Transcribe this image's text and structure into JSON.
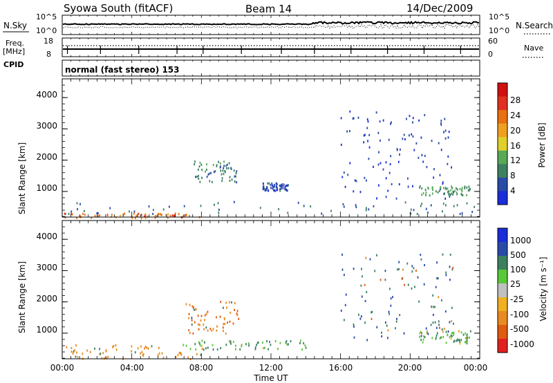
{
  "header": {
    "station": "Syowa South (fitACF)",
    "beam": "Beam 14",
    "date": "14/Dec/2009"
  },
  "top_panels": {
    "nsky_label": "N.Sky",
    "nsky_ticks": [
      "10^5",
      "10^0"
    ],
    "nsearch_label": "N.Search",
    "nsearch_ticks": [
      "10^5",
      "10^0"
    ],
    "freq_label": "Freq.",
    "freq_unit": "[MHz]",
    "freq_ticks": [
      "18",
      "8"
    ],
    "nave_label": "Nave",
    "nave_ticks": [
      "60",
      "0"
    ],
    "cpid_label": "CPID",
    "cpid_text": "normal (fast stereo) 153"
  },
  "colors": {
    "power_scale": [
      "#1a2dd8",
      "#2a4aa8",
      "#3d8060",
      "#58a858",
      "#e0cf2a",
      "#f0a020",
      "#e87010",
      "#e03020",
      "#d01010"
    ],
    "velocity_scale": [
      "#1a2dd8",
      "#2a4aa8",
      "#3d8060",
      "#58c838",
      "#c0c0c0",
      "#f0b020",
      "#e88a20",
      "#e05a10",
      "#e02020"
    ]
  },
  "chart_data": [
    {
      "type": "heatmap",
      "name": "power",
      "ylabel": "Slant Range [km]",
      "xlabel": "",
      "yticks": [
        "1000",
        "2000",
        "3000",
        "4000"
      ],
      "ylim": [
        180,
        4600
      ],
      "xlim": [
        0,
        24
      ],
      "colorbar": {
        "label": "Power [dB]",
        "ticks": [
          "4",
          "8",
          "12",
          "16",
          "20",
          "24",
          "28"
        ],
        "range": [
          0,
          32
        ]
      },
      "scatter_regions": [
        {
          "x": [
            16.0,
            22.5
          ],
          "y": [
            800,
            3600
          ],
          "value": 4
        },
        {
          "x": [
            20.5,
            23.5
          ],
          "y": [
            900,
            1200
          ],
          "value": 12
        },
        {
          "x": [
            7.5,
            10.0
          ],
          "y": [
            1300,
            2000
          ],
          "value": 10
        },
        {
          "x": [
            11.5,
            13.0
          ],
          "y": [
            1050,
            1300
          ],
          "value": 6
        },
        {
          "x": [
            0.0,
            24.0
          ],
          "y": [
            300,
            700
          ],
          "value": 8
        },
        {
          "x": [
            0.0,
            8.0
          ],
          "y": [
            180,
            330
          ],
          "value": 26
        }
      ]
    },
    {
      "type": "heatmap",
      "name": "velocity",
      "ylabel": "Slant Range [km]",
      "xlabel": "Time UT",
      "xticks": [
        "00:00",
        "04:00",
        "08:00",
        "12:00",
        "16:00",
        "20:00",
        "00:00"
      ],
      "yticks": [
        "1000",
        "2000",
        "3000",
        "4000"
      ],
      "ylim": [
        180,
        4600
      ],
      "xlim": [
        0,
        24
      ],
      "colorbar": {
        "label": "Velocity [m s⁻¹]",
        "ticks": [
          "1000",
          "500",
          "100",
          "25",
          "-25",
          "-100",
          "-500",
          "-1000"
        ]
      },
      "scatter_regions": [
        {
          "x": [
            16.0,
            22.5
          ],
          "y": [
            800,
            3600
          ],
          "value": 500
        },
        {
          "x": [
            20.5,
            23.5
          ],
          "y": [
            700,
            1100
          ],
          "value": 100
        },
        {
          "x": [
            7.0,
            10.2
          ],
          "y": [
            1000,
            2050
          ],
          "value": -500
        },
        {
          "x": [
            6.5,
            14.0
          ],
          "y": [
            500,
            800
          ],
          "value": 100
        },
        {
          "x": [
            0.0,
            8.0
          ],
          "y": [
            200,
            650
          ],
          "value": -300
        }
      ]
    }
  ]
}
